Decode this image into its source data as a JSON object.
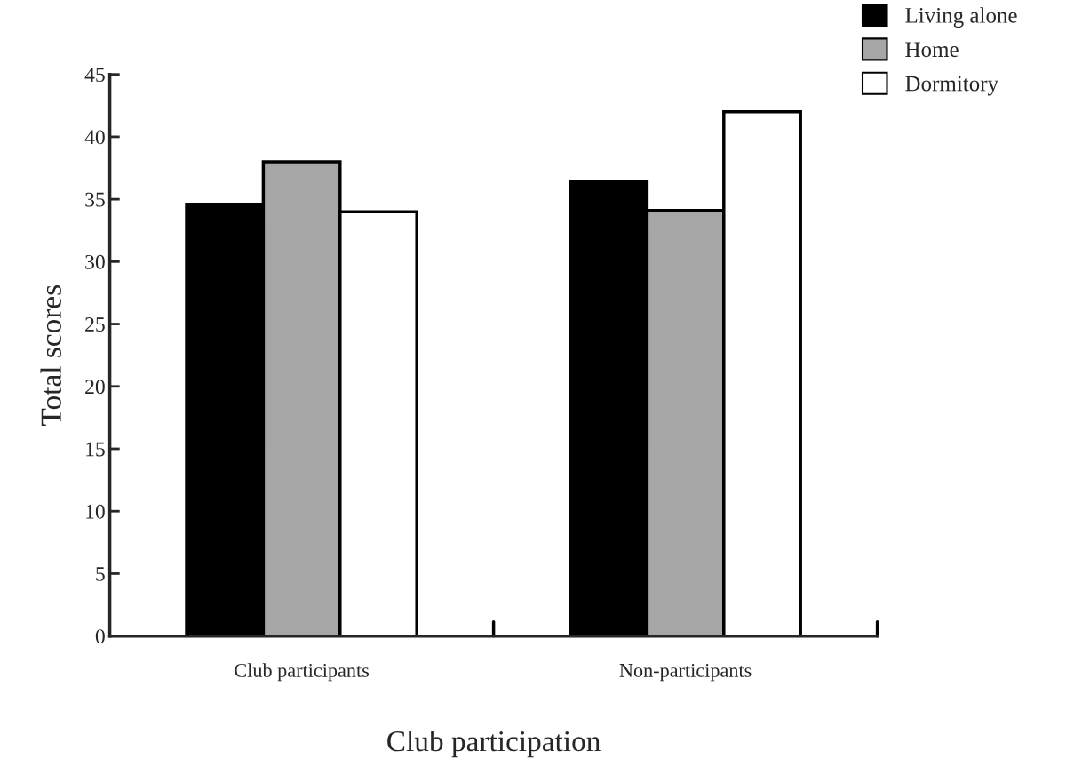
{
  "chart_data": {
    "type": "bar",
    "xlabel": "Club participation",
    "ylabel": "Total scores",
    "categories": [
      "Club participants",
      "Non-participants"
    ],
    "series": [
      {
        "name": "Living alone",
        "color": "#000000",
        "values": [
          34.6,
          36.4
        ]
      },
      {
        "name": "Home",
        "color": "#a6a6a6",
        "values": [
          38.0,
          34.1
        ]
      },
      {
        "name": "Dormitory",
        "color": "#ffffff",
        "values": [
          34.0,
          42.0
        ]
      }
    ],
    "ylim": [
      0,
      45
    ],
    "yticks": [
      0,
      5,
      10,
      15,
      20,
      25,
      30,
      35,
      40,
      45
    ],
    "grid": false,
    "legend": "top right"
  }
}
